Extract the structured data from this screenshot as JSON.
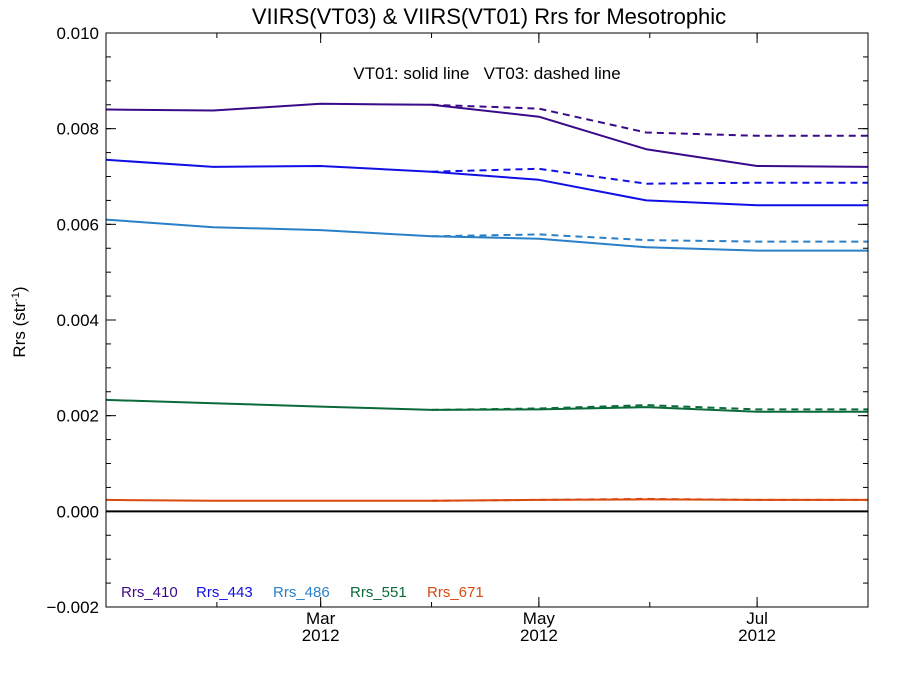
{
  "chart_data": {
    "type": "line",
    "title": "VIIRS(VT03) & VIIRS(VT01)  Rrs for Mesotrophic",
    "ylabel_main": "Rrs (str",
    "ylabel_sup": "-1",
    "ylabel_close": ")",
    "xlabel": "",
    "annotation": "VT01: solid line   VT03: dashed line",
    "ylim": [
      -0.002,
      0.01
    ],
    "yticks": [
      -0.002,
      0.0,
      0.002,
      0.004,
      0.006,
      0.008,
      0.01
    ],
    "ytick_labels": [
      "−0.002",
      "0.000",
      "0.002",
      "0.004",
      "0.006",
      "0.008",
      "0.010"
    ],
    "xlim": [
      "2012-01-01",
      "2012-08-01"
    ],
    "xticks": [
      {
        "date": "2012-03-01",
        "month": "Mar",
        "year": "2012"
      },
      {
        "date": "2012-05-01",
        "month": "May",
        "year": "2012"
      },
      {
        "date": "2012-07-01",
        "month": "Jul",
        "year": "2012"
      }
    ],
    "x": [
      "2012-01-01",
      "2012-01-31",
      "2012-03-01",
      "2012-04-01",
      "2012-05-01",
      "2012-05-31",
      "2012-07-01",
      "2012-08-01"
    ],
    "zero_line": 0.0,
    "series": [
      {
        "name": "Rrs_410",
        "color": "#3a0a8a",
        "solid": [
          0.0084,
          0.00838,
          0.00852,
          0.0085,
          0.00825,
          0.00757,
          0.00722,
          0.0072
        ],
        "dashed": [
          null,
          null,
          null,
          0.0085,
          0.00842,
          0.00792,
          0.00785,
          0.00785
        ]
      },
      {
        "name": "Rrs_443",
        "color": "#1010e6",
        "solid": [
          0.00735,
          0.0072,
          0.00722,
          0.0071,
          0.00693,
          0.0065,
          0.0064,
          0.0064
        ],
        "dashed": [
          null,
          null,
          null,
          0.0071,
          0.00716,
          0.00685,
          0.00687,
          0.00687
        ]
      },
      {
        "name": "Rrs_486",
        "color": "#2a80c8",
        "solid": [
          0.0061,
          0.00594,
          0.00588,
          0.00575,
          0.0057,
          0.00552,
          0.00545,
          0.00545
        ],
        "dashed": [
          null,
          null,
          null,
          0.00575,
          0.00579,
          0.00567,
          0.00564,
          0.00564
        ]
      },
      {
        "name": "Rrs_551",
        "color": "#0a6a3a",
        "solid": [
          0.00233,
          0.00226,
          0.00219,
          0.00212,
          0.00213,
          0.00218,
          0.00208,
          0.00208
        ],
        "dashed": [
          null,
          null,
          null,
          0.00212,
          0.00215,
          0.00222,
          0.00213,
          0.00213
        ]
      },
      {
        "name": "Rrs_671",
        "color": "#d84a10",
        "solid": [
          0.00024,
          0.00022,
          0.00022,
          0.00022,
          0.00024,
          0.00025,
          0.00024,
          0.00024
        ],
        "dashed": [
          null,
          null,
          null,
          0.00022,
          0.00024,
          0.00026,
          0.00024,
          0.00024
        ]
      }
    ],
    "legend": {
      "placement": "bottom-left",
      "style": "inline-text"
    },
    "grid": false
  }
}
